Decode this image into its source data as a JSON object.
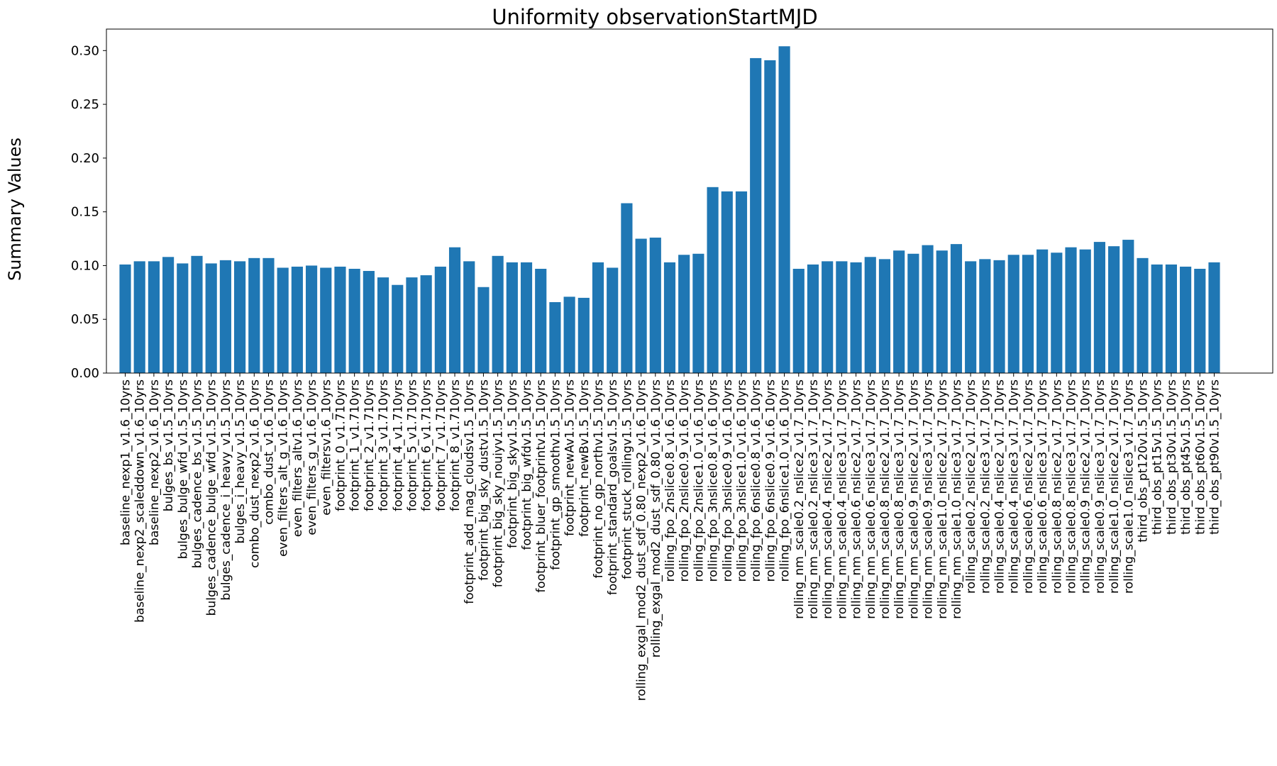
{
  "chart_data": {
    "type": "bar",
    "title": "Uniformity observationStartMJD",
    "xlabel": "",
    "ylabel": "Summary Values",
    "ylim": [
      0,
      0.32
    ],
    "yticks": [
      "0.00",
      "0.05",
      "0.10",
      "0.15",
      "0.20",
      "0.25",
      "0.30"
    ],
    "ytick_values": [
      0,
      0.05,
      0.1,
      0.15,
      0.2,
      0.25,
      0.3
    ],
    "grid": false,
    "bar_color": "#1f77b4",
    "categories": [
      "baseline_nexp1_v1.6_10yrs",
      "baseline_nexp2_scaleddown_v1.6_10yrs",
      "baseline_nexp2_v1.6_10yrs",
      "bulges_bs_v1.5_10yrs",
      "bulges_bulge_wfd_v1.5_10yrs",
      "bulges_cadence_bs_v1.5_10yrs",
      "bulges_cadence_bulge_wfd_v1.5_10yrs",
      "bulges_cadence_i_heavy_v1.5_10yrs",
      "bulges_i_heavy_v1.5_10yrs",
      "combo_dust_nexp2_v1.6_10yrs",
      "combo_dust_v1.6_10yrs",
      "even_filters_alt_g_v1.6_10yrs",
      "even_filters_altv1.6_10yrs",
      "even_filters_g_v1.6_10yrs",
      "even_filtersv1.6_10yrs",
      "footprint_0_v1.710yrs",
      "footprint_1_v1.710yrs",
      "footprint_2_v1.710yrs",
      "footprint_3_v1.710yrs",
      "footprint_4_v1.710yrs",
      "footprint_5_v1.710yrs",
      "footprint_6_v1.710yrs",
      "footprint_7_v1.710yrs",
      "footprint_8_v1.710yrs",
      "footprint_add_mag_cloudsv1.5_10yrs",
      "footprint_big_sky_dustv1.5_10yrs",
      "footprint_big_sky_nouiyv1.5_10yrs",
      "footprint_big_skyv1.5_10yrs",
      "footprint_big_wfdv1.5_10yrs",
      "footprint_bluer_footprintv1.5_10yrs",
      "footprint_gp_smoothv1.5_10yrs",
      "footprint_newAv1.5_10yrs",
      "footprint_newBv1.5_10yrs",
      "footprint_no_gp_northv1.5_10yrs",
      "footprint_standard_goalsv1.5_10yrs",
      "footprint_stuck_rollingv1.5_10yrs",
      "rolling_exgal_mod2_dust_sdf_0.80_nexp2_v1.6_10yrs",
      "rolling_exgal_mod2_dust_sdf_0.80_v1.6_10yrs",
      "rolling_fpo_2nslice0.8_v1.6_10yrs",
      "rolling_fpo_2nslice0.9_v1.6_10yrs",
      "rolling_fpo_2nslice1.0_v1.6_10yrs",
      "rolling_fpo_3nslice0.8_v1.6_10yrs",
      "rolling_fpo_3nslice0.9_v1.6_10yrs",
      "rolling_fpo_3nslice1.0_v1.6_10yrs",
      "rolling_fpo_6nslice0.8_v1.6_10yrs",
      "rolling_fpo_6nslice0.9_v1.6_10yrs",
      "rolling_fpo_6nslice1.0_v1.6_10yrs",
      "rolling_nm_scale0.2_nslice2_v1.7_10yrs",
      "rolling_nm_scale0.2_nslice3_v1.7_10yrs",
      "rolling_nm_scale0.4_nslice2_v1.7_10yrs",
      "rolling_nm_scale0.4_nslice3_v1.7_10yrs",
      "rolling_nm_scale0.6_nslice2_v1.7_10yrs",
      "rolling_nm_scale0.6_nslice3_v1.7_10yrs",
      "rolling_nm_scale0.8_nslice2_v1.7_10yrs",
      "rolling_nm_scale0.8_nslice3_v1.7_10yrs",
      "rolling_nm_scale0.9_nslice2_v1.7_10yrs",
      "rolling_nm_scale0.9_nslice3_v1.7_10yrs",
      "rolling_nm_scale1.0_nslice2_v1.7_10yrs",
      "rolling_nm_scale1.0_nslice3_v1.7_10yrs",
      "rolling_scale0.2_nslice2_v1.7_10yrs",
      "rolling_scale0.2_nslice3_v1.7_10yrs",
      "rolling_scale0.4_nslice2_v1.7_10yrs",
      "rolling_scale0.4_nslice3_v1.7_10yrs",
      "rolling_scale0.6_nslice2_v1.7_10yrs",
      "rolling_scale0.6_nslice3_v1.7_10yrs",
      "rolling_scale0.8_nslice2_v1.7_10yrs",
      "rolling_scale0.8_nslice3_v1.7_10yrs",
      "rolling_scale0.9_nslice2_v1.7_10yrs",
      "rolling_scale0.9_nslice3_v1.7_10yrs",
      "rolling_scale1.0_nslice2_v1.7_10yrs",
      "rolling_scale1.0_nslice3_v1.7_10yrs",
      "third_obs_pt120v1.5_10yrs",
      "third_obs_pt15v1.5_10yrs",
      "third_obs_pt30v1.5_10yrs",
      "third_obs_pt45v1.5_10yrs",
      "third_obs_pt60v1.5_10yrs",
      "third_obs_pt90v1.5_10yrs"
    ],
    "values": [
      0.101,
      0.104,
      0.104,
      0.108,
      0.102,
      0.109,
      0.102,
      0.105,
      0.104,
      0.107,
      0.107,
      0.098,
      0.099,
      0.1,
      0.098,
      0.099,
      0.097,
      0.095,
      0.089,
      0.082,
      0.089,
      0.091,
      0.099,
      0.117,
      0.104,
      0.08,
      0.109,
      0.103,
      0.103,
      0.097,
      0.066,
      0.071,
      0.07,
      0.103,
      0.098,
      0.158,
      0.125,
      0.126,
      0.103,
      0.11,
      0.111,
      0.173,
      0.169,
      0.169,
      0.293,
      0.291,
      0.304,
      0.097,
      0.101,
      0.104,
      0.104,
      0.103,
      0.108,
      0.106,
      0.114,
      0.111,
      0.119,
      0.114,
      0.12,
      0.104,
      0.106,
      0.105,
      0.11,
      0.11,
      0.115,
      0.112,
      0.117,
      0.115,
      0.122,
      0.118,
      0.124,
      0.107,
      0.101,
      0.101,
      0.099,
      0.097,
      0.103
    ]
  }
}
